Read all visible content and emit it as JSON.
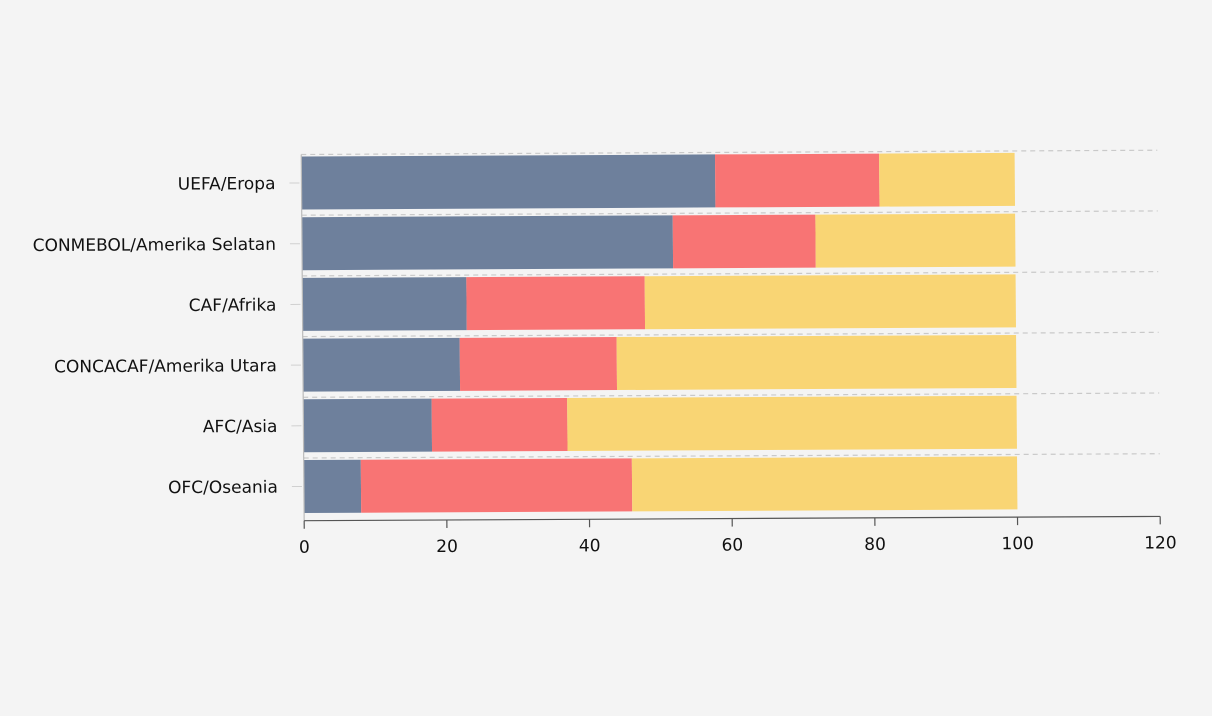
{
  "chart_data": {
    "type": "bar",
    "orientation": "horizontal",
    "stacked": true,
    "categories": [
      "UEFA/Eropa",
      "CONMEBOL/Amerika Selatan",
      "CAF/Afrika",
      "CONCACAF/Amerika Utara",
      "AFC/Asia",
      "OFC/Oseania"
    ],
    "series": [
      {
        "color": "#6e809c",
        "values": [
          58,
          52,
          23,
          22,
          18,
          8
        ]
      },
      {
        "color": "#f87474",
        "values": [
          23,
          20,
          25,
          22,
          19,
          38
        ]
      },
      {
        "color": "#f9d574",
        "values": [
          19,
          28,
          52,
          56,
          63,
          54
        ]
      }
    ],
    "x_ticks": [
      "0",
      "20",
      "40",
      "60",
      "80",
      "100",
      "120"
    ],
    "xlim": [
      0,
      120
    ],
    "grid": "horizontal dashed separators",
    "legend": "none"
  }
}
